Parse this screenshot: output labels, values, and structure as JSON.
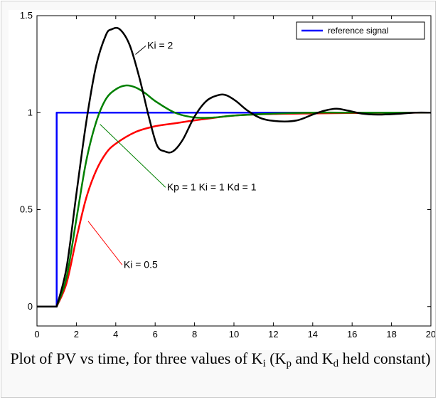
{
  "chart_data": {
    "type": "line",
    "title": "",
    "xlabel": "",
    "ylabel": "",
    "xlim": [
      0,
      20
    ],
    "ylim": [
      -0.1,
      1.5
    ],
    "x_ticks": [
      0,
      2,
      4,
      6,
      8,
      10,
      12,
      14,
      16,
      18,
      20
    ],
    "y_ticks": [
      0,
      0.5,
      1,
      1.5
    ],
    "y_tick_labels": [
      "0",
      "0.5",
      "1",
      "1.5"
    ],
    "grid": false,
    "legend": {
      "position": "top-right",
      "entries": [
        "reference signal"
      ]
    },
    "series": [
      {
        "name": "reference signal",
        "color": "#0000ff",
        "x": [
          0,
          1,
          1,
          20
        ],
        "y": [
          0,
          0,
          1,
          1
        ]
      },
      {
        "color": "#ff0000",
        "x": [
          0,
          1,
          1.5,
          2,
          2.5,
          3,
          3.5,
          4,
          5,
          6,
          7,
          8,
          10,
          12,
          14,
          16,
          18,
          20
        ],
        "y": [
          0,
          0,
          0.12,
          0.35,
          0.56,
          0.7,
          0.79,
          0.84,
          0.9,
          0.93,
          0.945,
          0.96,
          0.985,
          0.993,
          0.996,
          0.998,
          0.999,
          1.0
        ]
      },
      {
        "color": "#008000",
        "x": [
          0,
          1,
          1.5,
          2,
          2.5,
          3,
          3.5,
          4,
          4.5,
          5,
          5.5,
          6,
          7,
          8,
          9,
          10,
          12,
          14,
          16,
          18,
          20
        ],
        "y": [
          0,
          0,
          0.15,
          0.45,
          0.75,
          0.95,
          1.07,
          1.12,
          1.14,
          1.13,
          1.1,
          1.06,
          1.0,
          0.975,
          0.975,
          0.985,
          0.995,
          1.0,
          1.0,
          1.0,
          1.0
        ]
      },
      {
        "color": "#000000",
        "x": [
          0,
          1,
          1.5,
          2,
          2.5,
          3,
          3.5,
          3.8,
          4.2,
          4.7,
          5.2,
          5.7,
          6.1,
          6.5,
          6.9,
          7.4,
          8,
          8.6,
          9.2,
          9.6,
          10.1,
          10.7,
          11.4,
          12.3,
          13.2,
          14,
          14.6,
          15.2,
          15.8,
          16.5,
          17.3,
          18.2,
          19.2,
          20
        ],
        "y": [
          0,
          0,
          0.2,
          0.58,
          0.95,
          1.24,
          1.4,
          1.43,
          1.43,
          1.35,
          1.18,
          0.97,
          0.83,
          0.8,
          0.8,
          0.86,
          0.98,
          1.06,
          1.09,
          1.09,
          1.06,
          1.01,
          0.97,
          0.955,
          0.96,
          0.99,
          1.01,
          1.02,
          1.01,
          0.995,
          0.99,
          0.993,
          1.0,
          1.0
        ]
      }
    ],
    "annotations": [
      {
        "id": "ki2",
        "text": "Ki = 2",
        "text_x": 5.6,
        "text_y": 1.33,
        "arrow_to_x": 5.0,
        "arrow_to_y": 1.3,
        "color": "#000000"
      },
      {
        "id": "kp",
        "text": "Kp = 1  Ki = 1  Kd = 1",
        "text_x": 6.6,
        "text_y": 0.6,
        "arrow_to_x": 3.2,
        "arrow_to_y": 0.94,
        "color": "#008000"
      },
      {
        "id": "ki05",
        "text": "Ki = 0.5",
        "text_x": 4.4,
        "text_y": 0.2,
        "arrow_to_x": 2.6,
        "arrow_to_y": 0.44,
        "color": "#ff0000"
      }
    ]
  },
  "caption": {
    "part1": "Plot of PV vs time, for three values of K",
    "sub_i": "i",
    "part2": " (K",
    "sub_p": "p",
    "part3": " and K",
    "sub_d": "d",
    "part4": " held constant)"
  }
}
